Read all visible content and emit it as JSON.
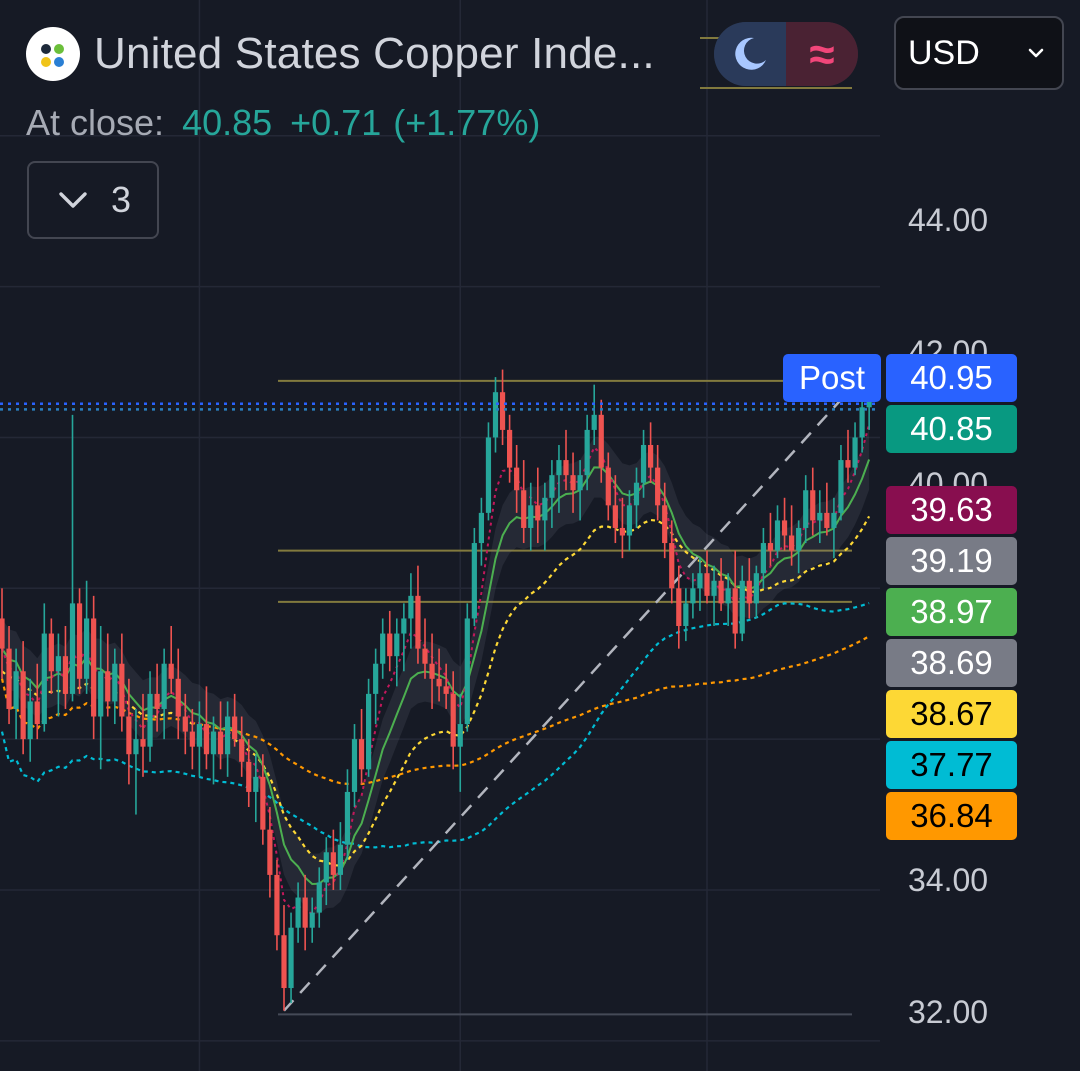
{
  "header": {
    "title": "United States Copper Inde...",
    "currency": "USD",
    "at_close_label": "At close:",
    "close_price": "40.85",
    "change": "+0.71",
    "change_pct": "(+1.77%)",
    "indicator_count": "3",
    "post_label": "Post"
  },
  "colors": {
    "background": "#161a25",
    "up": "#26a69a",
    "down": "#ef5350",
    "post_badge": "#2962ff"
  },
  "chart_data": {
    "type": "candlestick",
    "y_ticks": [
      "44.00",
      "42.00",
      "40.00",
      "34.00",
      "32.00"
    ],
    "ylim": [
      31.6,
      45.8
    ],
    "price_labels": [
      {
        "name": "post",
        "value": "40.95",
        "bg": "#2962ff",
        "fg": "#ffffff"
      },
      {
        "name": "close",
        "value": "40.85",
        "bg": "#089981",
        "fg": "#ffffff"
      },
      {
        "name": "ma-fast",
        "value": "39.63",
        "bg": "#880e4f",
        "fg": "#ffffff"
      },
      {
        "name": "band-upper",
        "value": "39.19",
        "bg": "#787b86",
        "fg": "#ffffff"
      },
      {
        "name": "ma-green",
        "value": "38.97",
        "bg": "#4caf50",
        "fg": "#ffffff"
      },
      {
        "name": "band-lower",
        "value": "38.69",
        "bg": "#787b86",
        "fg": "#ffffff"
      },
      {
        "name": "ma-yellow",
        "value": "38.67",
        "bg": "#fdd835",
        "fg": "#000000"
      },
      {
        "name": "ma-cyan",
        "value": "37.77",
        "bg": "#00bcd4",
        "fg": "#000000"
      },
      {
        "name": "ma-orange",
        "value": "36.84",
        "bg": "#ff9800",
        "fg": "#000000"
      }
    ],
    "post_price": 40.95,
    "close_price": 40.85,
    "horizontal_levels": [
      40.75,
      38.5,
      37.82,
      32.35
    ],
    "trend_line": [
      {
        "i": 40,
        "v": 32.4
      },
      {
        "i": 119,
        "v": 40.5
      }
    ],
    "x_gridlines_at_bar": [
      28,
      65,
      100
    ],
    "candles": [
      {
        "o": 37.6,
        "h": 38.0,
        "l": 36.8,
        "c": 37.2
      },
      {
        "o": 37.2,
        "h": 37.5,
        "l": 36.2,
        "c": 36.4
      },
      {
        "o": 36.4,
        "h": 37.2,
        "l": 36.0,
        "c": 36.9
      },
      {
        "o": 36.9,
        "h": 37.3,
        "l": 35.8,
        "c": 36.0
      },
      {
        "o": 36.0,
        "h": 36.8,
        "l": 35.7,
        "c": 36.5
      },
      {
        "o": 36.5,
        "h": 37.0,
        "l": 36.0,
        "c": 36.2
      },
      {
        "o": 36.2,
        "h": 37.8,
        "l": 36.1,
        "c": 37.4
      },
      {
        "o": 37.4,
        "h": 37.6,
        "l": 36.6,
        "c": 36.9
      },
      {
        "o": 36.9,
        "h": 37.4,
        "l": 36.3,
        "c": 37.1
      },
      {
        "o": 37.1,
        "h": 37.5,
        "l": 36.4,
        "c": 36.6
      },
      {
        "o": 36.6,
        "h": 40.3,
        "l": 36.5,
        "c": 37.8
      },
      {
        "o": 37.8,
        "h": 38.0,
        "l": 36.6,
        "c": 36.8
      },
      {
        "o": 36.8,
        "h": 38.1,
        "l": 36.6,
        "c": 37.6
      },
      {
        "o": 37.6,
        "h": 37.9,
        "l": 36.0,
        "c": 36.3
      },
      {
        "o": 36.3,
        "h": 37.5,
        "l": 35.6,
        "c": 36.9
      },
      {
        "o": 36.9,
        "h": 37.4,
        "l": 36.3,
        "c": 36.5
      },
      {
        "o": 36.5,
        "h": 37.2,
        "l": 36.2,
        "c": 37.0
      },
      {
        "o": 37.0,
        "h": 37.4,
        "l": 36.1,
        "c": 36.3
      },
      {
        "o": 36.3,
        "h": 36.8,
        "l": 35.4,
        "c": 35.8
      },
      {
        "o": 35.8,
        "h": 36.4,
        "l": 35.0,
        "c": 36.0
      },
      {
        "o": 36.0,
        "h": 36.6,
        "l": 35.5,
        "c": 35.9
      },
      {
        "o": 35.9,
        "h": 36.9,
        "l": 35.7,
        "c": 36.6
      },
      {
        "o": 36.6,
        "h": 37.0,
        "l": 36.1,
        "c": 36.4
      },
      {
        "o": 36.4,
        "h": 37.2,
        "l": 36.0,
        "c": 37.0
      },
      {
        "o": 37.0,
        "h": 37.5,
        "l": 36.6,
        "c": 36.8
      },
      {
        "o": 36.8,
        "h": 37.2,
        "l": 36.0,
        "c": 36.3
      },
      {
        "o": 36.3,
        "h": 36.6,
        "l": 35.8,
        "c": 36.1
      },
      {
        "o": 36.1,
        "h": 36.4,
        "l": 35.6,
        "c": 35.9
      },
      {
        "o": 35.9,
        "h": 36.5,
        "l": 35.5,
        "c": 36.2
      },
      {
        "o": 36.2,
        "h": 36.7,
        "l": 35.6,
        "c": 35.8
      },
      {
        "o": 35.8,
        "h": 36.3,
        "l": 35.4,
        "c": 36.1
      },
      {
        "o": 36.1,
        "h": 36.5,
        "l": 35.6,
        "c": 35.8
      },
      {
        "o": 35.8,
        "h": 36.5,
        "l": 35.5,
        "c": 36.3
      },
      {
        "o": 36.3,
        "h": 36.6,
        "l": 35.9,
        "c": 36.0
      },
      {
        "o": 36.0,
        "h": 36.3,
        "l": 35.5,
        "c": 35.7
      },
      {
        "o": 35.7,
        "h": 36.0,
        "l": 35.1,
        "c": 35.3
      },
      {
        "o": 35.3,
        "h": 35.8,
        "l": 34.9,
        "c": 35.5
      },
      {
        "o": 35.5,
        "h": 35.8,
        "l": 34.6,
        "c": 34.8
      },
      {
        "o": 34.8,
        "h": 35.1,
        "l": 33.9,
        "c": 34.2
      },
      {
        "o": 34.2,
        "h": 34.4,
        "l": 33.2,
        "c": 33.4
      },
      {
        "o": 33.4,
        "h": 33.8,
        "l": 32.4,
        "c": 32.7
      },
      {
        "o": 32.7,
        "h": 33.7,
        "l": 32.5,
        "c": 33.5
      },
      {
        "o": 33.5,
        "h": 34.1,
        "l": 33.3,
        "c": 33.9
      },
      {
        "o": 33.9,
        "h": 34.2,
        "l": 33.2,
        "c": 33.5
      },
      {
        "o": 33.5,
        "h": 33.9,
        "l": 33.3,
        "c": 33.7
      },
      {
        "o": 33.7,
        "h": 34.3,
        "l": 33.5,
        "c": 34.1
      },
      {
        "o": 34.1,
        "h": 34.7,
        "l": 33.8,
        "c": 34.5
      },
      {
        "o": 34.5,
        "h": 34.8,
        "l": 34.0,
        "c": 34.2
      },
      {
        "o": 34.2,
        "h": 34.9,
        "l": 34.0,
        "c": 34.6
      },
      {
        "o": 34.6,
        "h": 35.6,
        "l": 34.4,
        "c": 35.3
      },
      {
        "o": 35.3,
        "h": 36.2,
        "l": 35.1,
        "c": 36.0
      },
      {
        "o": 36.0,
        "h": 36.4,
        "l": 35.4,
        "c": 35.6
      },
      {
        "o": 35.6,
        "h": 36.8,
        "l": 35.5,
        "c": 36.6
      },
      {
        "o": 36.6,
        "h": 37.2,
        "l": 36.2,
        "c": 37.0
      },
      {
        "o": 37.0,
        "h": 37.6,
        "l": 36.8,
        "c": 37.4
      },
      {
        "o": 37.4,
        "h": 37.7,
        "l": 36.9,
        "c": 37.1
      },
      {
        "o": 37.1,
        "h": 37.6,
        "l": 36.7,
        "c": 37.4
      },
      {
        "o": 37.4,
        "h": 37.8,
        "l": 36.9,
        "c": 37.6
      },
      {
        "o": 37.6,
        "h": 38.2,
        "l": 37.2,
        "c": 37.9
      },
      {
        "o": 37.9,
        "h": 38.3,
        "l": 37.0,
        "c": 37.2
      },
      {
        "o": 37.2,
        "h": 37.6,
        "l": 36.8,
        "c": 37.0
      },
      {
        "o": 37.0,
        "h": 37.4,
        "l": 36.4,
        "c": 36.8
      },
      {
        "o": 36.8,
        "h": 37.2,
        "l": 36.5,
        "c": 36.7
      },
      {
        "o": 36.7,
        "h": 37.0,
        "l": 36.4,
        "c": 36.6
      },
      {
        "o": 36.6,
        "h": 36.9,
        "l": 35.6,
        "c": 35.9
      },
      {
        "o": 35.9,
        "h": 36.6,
        "l": 35.3,
        "c": 36.2
      },
      {
        "o": 36.2,
        "h": 37.8,
        "l": 36.1,
        "c": 37.6
      },
      {
        "o": 37.6,
        "h": 38.8,
        "l": 37.5,
        "c": 38.6
      },
      {
        "o": 38.6,
        "h": 39.2,
        "l": 38.3,
        "c": 39.0
      },
      {
        "o": 39.0,
        "h": 40.2,
        "l": 38.9,
        "c": 40.0
      },
      {
        "o": 40.0,
        "h": 40.8,
        "l": 39.8,
        "c": 40.6
      },
      {
        "o": 40.6,
        "h": 40.9,
        "l": 39.9,
        "c": 40.1
      },
      {
        "o": 40.1,
        "h": 40.3,
        "l": 39.4,
        "c": 39.6
      },
      {
        "o": 39.6,
        "h": 39.9,
        "l": 39.0,
        "c": 39.3
      },
      {
        "o": 39.3,
        "h": 39.7,
        "l": 38.6,
        "c": 38.8
      },
      {
        "o": 38.8,
        "h": 39.4,
        "l": 38.5,
        "c": 39.1
      },
      {
        "o": 39.1,
        "h": 39.6,
        "l": 38.6,
        "c": 38.9
      },
      {
        "o": 38.9,
        "h": 39.4,
        "l": 38.5,
        "c": 39.2
      },
      {
        "o": 39.2,
        "h": 39.7,
        "l": 38.8,
        "c": 39.5
      },
      {
        "o": 39.5,
        "h": 39.9,
        "l": 39.0,
        "c": 39.7
      },
      {
        "o": 39.7,
        "h": 40.1,
        "l": 39.3,
        "c": 39.5
      },
      {
        "o": 39.5,
        "h": 39.8,
        "l": 39.0,
        "c": 39.3
      },
      {
        "o": 39.3,
        "h": 39.7,
        "l": 38.9,
        "c": 39.5
      },
      {
        "o": 39.5,
        "h": 40.3,
        "l": 39.3,
        "c": 40.1
      },
      {
        "o": 40.1,
        "h": 40.7,
        "l": 39.9,
        "c": 40.3
      },
      {
        "o": 40.3,
        "h": 40.5,
        "l": 39.4,
        "c": 39.6
      },
      {
        "o": 39.6,
        "h": 39.8,
        "l": 38.9,
        "c": 39.1
      },
      {
        "o": 39.1,
        "h": 39.5,
        "l": 38.6,
        "c": 38.8
      },
      {
        "o": 38.8,
        "h": 39.2,
        "l": 38.4,
        "c": 38.7
      },
      {
        "o": 38.7,
        "h": 39.3,
        "l": 38.5,
        "c": 39.1
      },
      {
        "o": 39.1,
        "h": 39.6,
        "l": 38.8,
        "c": 39.4
      },
      {
        "o": 39.4,
        "h": 40.1,
        "l": 39.2,
        "c": 39.9
      },
      {
        "o": 39.9,
        "h": 40.2,
        "l": 39.4,
        "c": 39.6
      },
      {
        "o": 39.6,
        "h": 39.9,
        "l": 38.9,
        "c": 39.1
      },
      {
        "o": 39.1,
        "h": 39.4,
        "l": 38.4,
        "c": 38.6
      },
      {
        "o": 38.6,
        "h": 38.9,
        "l": 37.8,
        "c": 38.0
      },
      {
        "o": 38.0,
        "h": 38.3,
        "l": 37.2,
        "c": 37.5
      },
      {
        "o": 37.5,
        "h": 38.0,
        "l": 37.3,
        "c": 37.8
      },
      {
        "o": 37.8,
        "h": 38.2,
        "l": 37.6,
        "c": 38.0
      },
      {
        "o": 38.0,
        "h": 38.4,
        "l": 37.7,
        "c": 38.2
      },
      {
        "o": 38.2,
        "h": 38.5,
        "l": 37.8,
        "c": 37.9
      },
      {
        "o": 37.9,
        "h": 38.3,
        "l": 37.5,
        "c": 38.1
      },
      {
        "o": 38.1,
        "h": 38.4,
        "l": 37.7,
        "c": 37.8
      },
      {
        "o": 37.8,
        "h": 38.2,
        "l": 37.5,
        "c": 38.0
      },
      {
        "o": 38.0,
        "h": 38.5,
        "l": 37.2,
        "c": 37.4
      },
      {
        "o": 37.4,
        "h": 38.3,
        "l": 37.3,
        "c": 38.1
      },
      {
        "o": 38.1,
        "h": 38.4,
        "l": 37.6,
        "c": 37.8
      },
      {
        "o": 37.8,
        "h": 38.3,
        "l": 37.6,
        "c": 38.2
      },
      {
        "o": 38.2,
        "h": 38.8,
        "l": 38.0,
        "c": 38.6
      },
      {
        "o": 38.6,
        "h": 39.0,
        "l": 38.3,
        "c": 38.5
      },
      {
        "o": 38.5,
        "h": 39.1,
        "l": 38.4,
        "c": 38.9
      },
      {
        "o": 38.9,
        "h": 39.2,
        "l": 38.5,
        "c": 38.7
      },
      {
        "o": 38.7,
        "h": 39.1,
        "l": 38.3,
        "c": 38.5
      },
      {
        "o": 38.5,
        "h": 38.9,
        "l": 38.2,
        "c": 38.8
      },
      {
        "o": 38.8,
        "h": 39.5,
        "l": 38.6,
        "c": 39.3
      },
      {
        "o": 39.3,
        "h": 39.6,
        "l": 38.7,
        "c": 38.9
      },
      {
        "o": 38.9,
        "h": 39.3,
        "l": 38.6,
        "c": 39.0
      },
      {
        "o": 39.0,
        "h": 39.4,
        "l": 38.7,
        "c": 38.8
      },
      {
        "o": 38.8,
        "h": 39.2,
        "l": 38.4,
        "c": 39.0
      },
      {
        "o": 39.0,
        "h": 39.9,
        "l": 38.9,
        "c": 39.7
      },
      {
        "o": 39.7,
        "h": 40.1,
        "l": 39.4,
        "c": 39.6
      },
      {
        "o": 39.6,
        "h": 40.2,
        "l": 39.5,
        "c": 40.0
      },
      {
        "o": 40.0,
        "h": 40.6,
        "l": 39.8,
        "c": 40.4
      },
      {
        "o": 40.4,
        "h": 40.9,
        "l": 40.1,
        "c": 40.85
      }
    ]
  }
}
